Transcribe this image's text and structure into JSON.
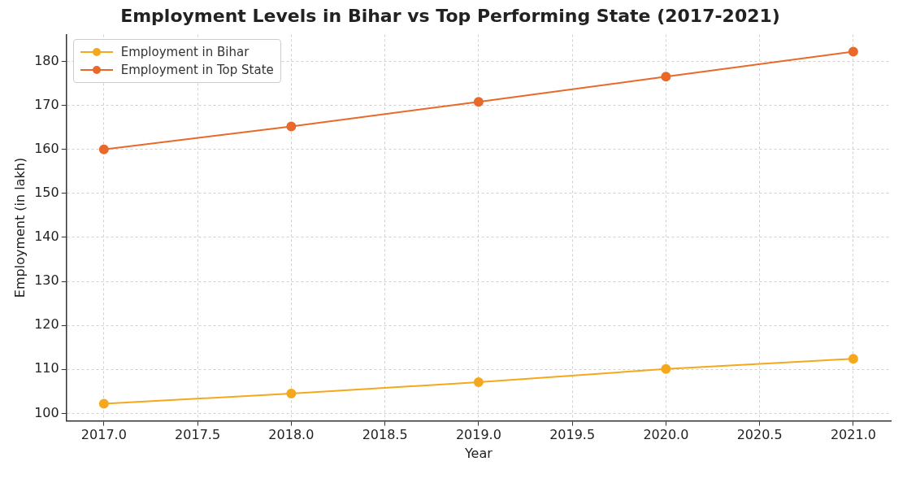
{
  "chart_data": {
    "type": "line",
    "title": "Employment Levels in Bihar vs Top Performing State (2017-2021)",
    "xlabel": "Year",
    "ylabel": "Employment (in lakh)",
    "x": [
      2017,
      2018,
      2019,
      2020,
      2021
    ],
    "series": [
      {
        "name": "Employment in Bihar",
        "color": "#f5a81c",
        "values": [
          102.2,
          104.5,
          107.1,
          110.1,
          112.4
        ]
      },
      {
        "name": "Employment in Top State",
        "color": "#e8692a",
        "values": [
          160.0,
          165.2,
          170.8,
          176.5,
          182.2
        ]
      }
    ],
    "xlim": [
      2016.8,
      2021.2
    ],
    "xticks": [
      {
        "value": 2017,
        "label": "2017.0"
      },
      {
        "value": 2017.5,
        "label": "2017.5"
      },
      {
        "value": 2018,
        "label": "2018.0"
      },
      {
        "value": 2018.5,
        "label": "2018.5"
      },
      {
        "value": 2019,
        "label": "2019.0"
      },
      {
        "value": 2019.5,
        "label": "2019.5"
      },
      {
        "value": 2020,
        "label": "2020.0"
      },
      {
        "value": 2020.5,
        "label": "2020.5"
      },
      {
        "value": 2021,
        "label": "2021.0"
      }
    ],
    "ylim": [
      98.3,
      186.1
    ],
    "yticks": [
      100,
      110,
      120,
      130,
      140,
      150,
      160,
      170,
      180
    ],
    "grid": true,
    "legend": "top left",
    "marker": "circle",
    "line_style": "solid"
  }
}
